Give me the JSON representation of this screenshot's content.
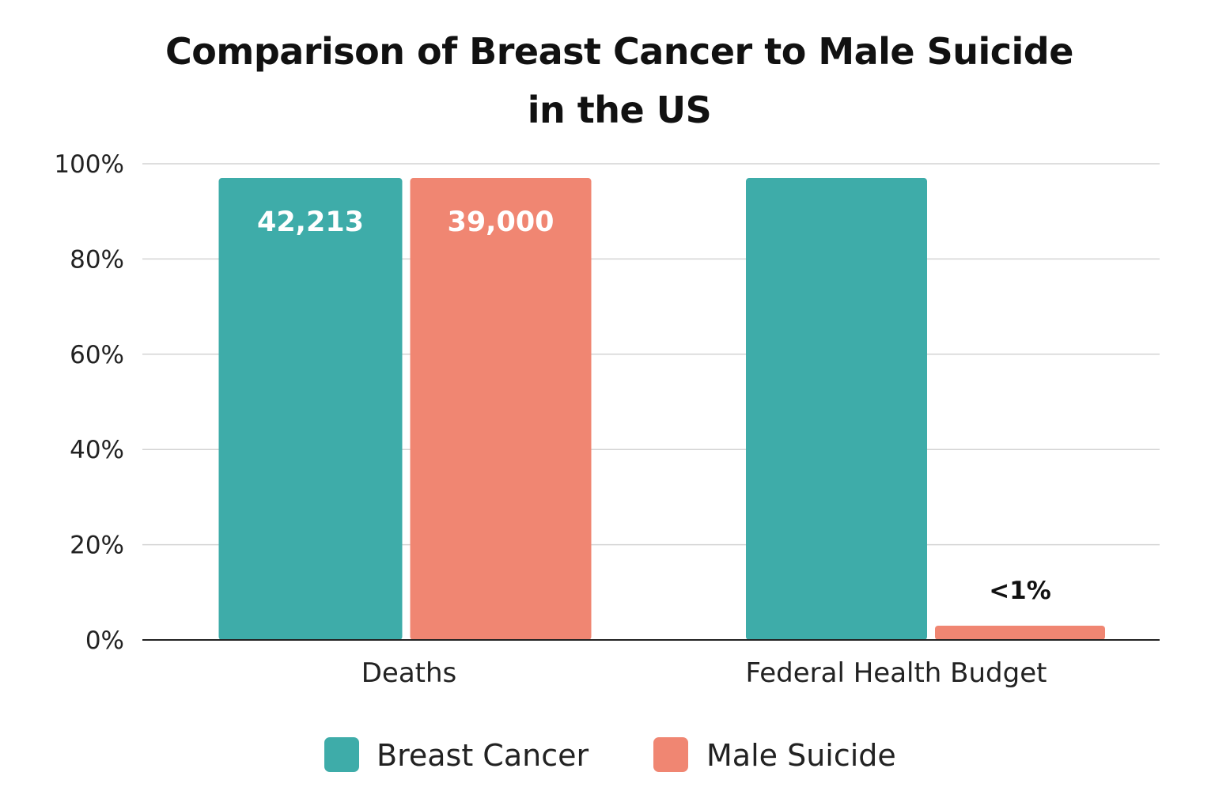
{
  "chart_data": {
    "type": "bar",
    "title": "Comparison of Breast Cancer to Male Suicide in the US",
    "title_lines": [
      "Comparison of Breast Cancer to Male Suicide",
      "in the US"
    ],
    "categories": [
      "Deaths",
      "Federal Health Budget"
    ],
    "series": [
      {
        "name": "Breast Cancer",
        "color": "#3eaca9",
        "values": [
          97,
          97
        ],
        "labels": [
          "42,213",
          ""
        ]
      },
      {
        "name": "Male Suicide",
        "color": "#f08672",
        "values": [
          97,
          3
        ],
        "labels": [
          "39,000",
          "<1%"
        ]
      }
    ],
    "y_ticks": [
      {
        "value": 0,
        "label": "0%"
      },
      {
        "value": 20,
        "label": "20%"
      },
      {
        "value": 40,
        "label": "40%"
      },
      {
        "value": 60,
        "label": "60%"
      },
      {
        "value": 80,
        "label": "80%"
      },
      {
        "value": 100,
        "label": "100%"
      }
    ],
    "ylim": [
      0,
      100
    ],
    "xlabel": "",
    "ylabel": "",
    "grid": true,
    "legend_position": "bottom"
  }
}
